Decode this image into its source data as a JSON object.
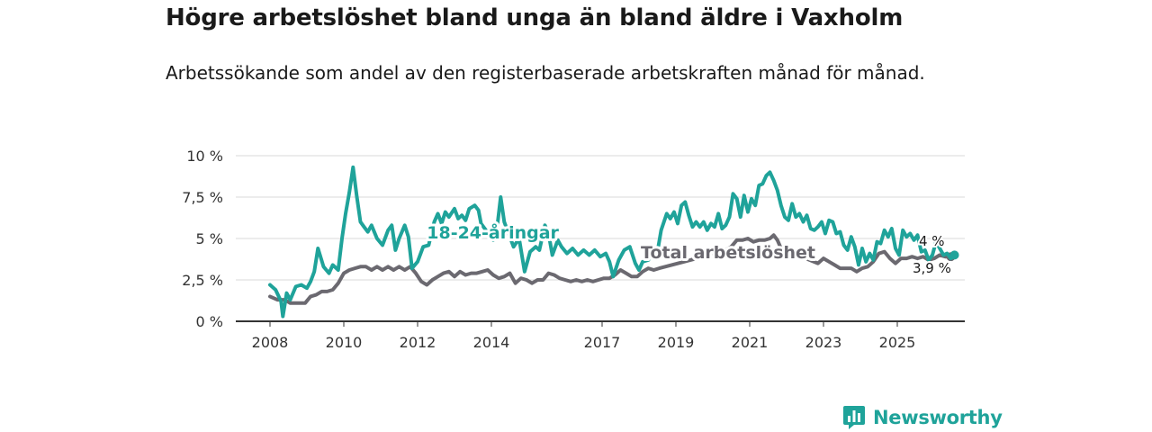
{
  "title": "Högre arbetslöshet bland unga än bland äldre i Vaxholm",
  "subtitle": "Arbetssökande som andel av den registerbaserade arbetskraften månad för månad.",
  "brand": {
    "name": "Newsworthy",
    "icon": "newsworthy-logo-icon",
    "color": "#1fa39a"
  },
  "chart_data": {
    "type": "line",
    "title": "Högre arbetslöshet bland unga än bland äldre i Vaxholm",
    "xlabel": "",
    "ylabel": "",
    "xlim": [
      2007.9,
      2026.0
    ],
    "ylim": [
      0,
      10
    ],
    "y_ticks": [
      0,
      2.5,
      5,
      7.5,
      10
    ],
    "y_tick_labels": [
      "0 %",
      "2,5 %",
      "5 %",
      "7,5 %",
      "10 %"
    ],
    "x_ticks": [
      2008,
      2010,
      2012,
      2014,
      2017,
      2019,
      2021,
      2023,
      2025
    ],
    "x_tick_labels": [
      "2008",
      "2010",
      "2012",
      "2014",
      "2017",
      "2019",
      "2021",
      "2023",
      "2025"
    ],
    "grid": true,
    "series": [
      {
        "name": "18-24-åringar",
        "color": "#1fa39a",
        "label_pos": [
          2012.25,
          5.0
        ],
        "end_label": "4 %",
        "points": [
          [
            2008.0,
            2.2
          ],
          [
            2008.15,
            1.9
          ],
          [
            2008.3,
            1.2
          ],
          [
            2008.35,
            0.3
          ],
          [
            2008.45,
            1.7
          ],
          [
            2008.55,
            1.3
          ],
          [
            2008.7,
            2.1
          ],
          [
            2008.85,
            2.2
          ],
          [
            2009.0,
            2.0
          ],
          [
            2009.1,
            2.4
          ],
          [
            2009.2,
            3.0
          ],
          [
            2009.3,
            4.4
          ],
          [
            2009.45,
            3.3
          ],
          [
            2009.6,
            2.9
          ],
          [
            2009.7,
            3.4
          ],
          [
            2009.85,
            3.1
          ],
          [
            2009.95,
            5.0
          ],
          [
            2010.05,
            6.5
          ],
          [
            2010.15,
            7.8
          ],
          [
            2010.25,
            9.3
          ],
          [
            2010.35,
            7.6
          ],
          [
            2010.45,
            6.0
          ],
          [
            2010.55,
            5.7
          ],
          [
            2010.65,
            5.4
          ],
          [
            2010.75,
            5.8
          ],
          [
            2010.9,
            5.0
          ],
          [
            2011.05,
            4.6
          ],
          [
            2011.2,
            5.5
          ],
          [
            2011.3,
            5.8
          ],
          [
            2011.4,
            4.3
          ],
          [
            2011.5,
            5.0
          ],
          [
            2011.65,
            5.8
          ],
          [
            2011.75,
            5.1
          ],
          [
            2011.85,
            3.2
          ],
          [
            2012.0,
            3.6
          ],
          [
            2012.15,
            4.5
          ],
          [
            2012.3,
            4.6
          ],
          [
            2012.45,
            6.0
          ],
          [
            2012.55,
            6.5
          ],
          [
            2012.65,
            5.9
          ],
          [
            2012.75,
            6.6
          ],
          [
            2012.85,
            6.3
          ],
          [
            2013.0,
            6.8
          ],
          [
            2013.1,
            6.2
          ],
          [
            2013.2,
            6.4
          ],
          [
            2013.3,
            6.1
          ],
          [
            2013.4,
            6.8
          ],
          [
            2013.55,
            7.0
          ],
          [
            2013.65,
            6.7
          ],
          [
            2013.72,
            5.9
          ],
          [
            2014.05,
            4.9
          ],
          [
            2014.15,
            5.6
          ],
          [
            2014.25,
            7.5
          ],
          [
            2014.35,
            6.0
          ],
          [
            2014.45,
            5.4
          ],
          [
            2014.6,
            4.5
          ],
          [
            2014.75,
            5.0
          ],
          [
            2014.9,
            3.0
          ],
          [
            2015.05,
            4.2
          ],
          [
            2015.2,
            4.5
          ],
          [
            2015.3,
            4.3
          ],
          [
            2015.45,
            5.8
          ],
          [
            2015.55,
            5.3
          ],
          [
            2015.65,
            4.0
          ],
          [
            2015.8,
            4.9
          ],
          [
            2015.9,
            4.5
          ],
          [
            2016.05,
            4.1
          ],
          [
            2016.2,
            4.4
          ],
          [
            2016.35,
            4.0
          ],
          [
            2016.5,
            4.3
          ],
          [
            2016.65,
            4.0
          ],
          [
            2016.8,
            4.3
          ],
          [
            2016.95,
            3.9
          ],
          [
            2017.1,
            4.1
          ],
          [
            2017.2,
            3.6
          ],
          [
            2017.3,
            2.7
          ],
          [
            2017.45,
            3.7
          ],
          [
            2017.6,
            4.3
          ],
          [
            2017.75,
            4.5
          ],
          [
            2017.9,
            3.5
          ],
          [
            2018.0,
            3.1
          ],
          [
            2018.1,
            3.6
          ],
          [
            2018.25,
            3.7
          ],
          [
            2018.35,
            4.0
          ],
          [
            2018.5,
            4.2
          ],
          [
            2018.6,
            5.5
          ],
          [
            2018.75,
            6.5
          ],
          [
            2018.85,
            6.2
          ],
          [
            2018.95,
            6.6
          ],
          [
            2019.05,
            5.9
          ],
          [
            2019.15,
            7.0
          ],
          [
            2019.25,
            7.2
          ],
          [
            2019.35,
            6.4
          ],
          [
            2019.45,
            5.7
          ],
          [
            2019.55,
            6.0
          ],
          [
            2019.65,
            5.7
          ],
          [
            2019.75,
            6.0
          ],
          [
            2019.85,
            5.5
          ],
          [
            2019.95,
            5.9
          ],
          [
            2020.05,
            5.7
          ],
          [
            2020.15,
            6.5
          ],
          [
            2020.25,
            5.6
          ],
          [
            2020.35,
            5.8
          ],
          [
            2020.45,
            6.3
          ],
          [
            2020.55,
            7.7
          ],
          [
            2020.65,
            7.4
          ],
          [
            2020.75,
            6.3
          ],
          [
            2020.85,
            7.6
          ],
          [
            2020.95,
            6.6
          ],
          [
            2021.05,
            7.4
          ],
          [
            2021.15,
            7.0
          ],
          [
            2021.25,
            8.2
          ],
          [
            2021.35,
            8.3
          ],
          [
            2021.45,
            8.8
          ],
          [
            2021.55,
            9.0
          ],
          [
            2021.65,
            8.5
          ],
          [
            2021.75,
            7.9
          ],
          [
            2021.85,
            7.0
          ],
          [
            2021.95,
            6.3
          ],
          [
            2022.05,
            6.1
          ],
          [
            2022.15,
            7.1
          ],
          [
            2022.25,
            6.3
          ],
          [
            2022.35,
            6.5
          ],
          [
            2022.45,
            6.0
          ],
          [
            2022.55,
            6.4
          ],
          [
            2022.65,
            5.6
          ],
          [
            2022.75,
            5.5
          ],
          [
            2022.85,
            5.7
          ],
          [
            2022.95,
            6.0
          ],
          [
            2023.05,
            5.3
          ],
          [
            2023.15,
            6.1
          ],
          [
            2023.25,
            6.0
          ],
          [
            2023.35,
            5.3
          ],
          [
            2023.45,
            5.4
          ],
          [
            2023.55,
            4.6
          ],
          [
            2023.65,
            4.3
          ],
          [
            2023.75,
            5.1
          ],
          [
            2023.85,
            4.5
          ],
          [
            2023.95,
            3.4
          ],
          [
            2024.05,
            4.4
          ],
          [
            2024.15,
            3.6
          ],
          [
            2024.25,
            4.1
          ],
          [
            2024.35,
            3.7
          ],
          [
            2024.45,
            4.8
          ],
          [
            2024.55,
            4.7
          ],
          [
            2024.65,
            5.5
          ],
          [
            2024.75,
            5.1
          ],
          [
            2024.85,
            5.6
          ],
          [
            2024.95,
            4.4
          ],
          [
            2025.05,
            4.0
          ],
          [
            2025.15,
            5.5
          ],
          [
            2025.25,
            5.1
          ],
          [
            2025.35,
            5.3
          ],
          [
            2025.45,
            4.9
          ],
          [
            2025.55,
            5.2
          ],
          [
            2025.65,
            4.2
          ],
          [
            2025.75,
            4.3
          ],
          [
            2025.85,
            3.7
          ],
          [
            2025.95,
            4.0
          ],
          [
            2026.05,
            4.8
          ],
          [
            2026.15,
            4.4
          ],
          [
            2026.25,
            4.0
          ],
          [
            2026.35,
            4.1
          ],
          [
            2026.45,
            3.8
          ],
          [
            2026.55,
            4.0
          ]
        ]
      },
      {
        "name": "Total arbetslöshet",
        "color": "#6b6970",
        "label_pos": [
          2018.05,
          3.8
        ],
        "end_label": "3,9 %",
        "points": [
          [
            2008.0,
            1.5
          ],
          [
            2008.2,
            1.3
          ],
          [
            2008.4,
            1.3
          ],
          [
            2008.55,
            1.1
          ],
          [
            2008.75,
            1.1
          ],
          [
            2008.95,
            1.1
          ],
          [
            2009.1,
            1.5
          ],
          [
            2009.25,
            1.6
          ],
          [
            2009.4,
            1.8
          ],
          [
            2009.55,
            1.8
          ],
          [
            2009.7,
            1.9
          ],
          [
            2009.85,
            2.3
          ],
          [
            2010.0,
            2.9
          ],
          [
            2010.15,
            3.1
          ],
          [
            2010.3,
            3.2
          ],
          [
            2010.45,
            3.3
          ],
          [
            2010.6,
            3.3
          ],
          [
            2010.75,
            3.1
          ],
          [
            2010.9,
            3.3
          ],
          [
            2011.05,
            3.1
          ],
          [
            2011.2,
            3.3
          ],
          [
            2011.35,
            3.1
          ],
          [
            2011.5,
            3.3
          ],
          [
            2011.65,
            3.1
          ],
          [
            2011.8,
            3.3
          ],
          [
            2011.95,
            2.9
          ],
          [
            2012.1,
            2.4
          ],
          [
            2012.25,
            2.2
          ],
          [
            2012.4,
            2.5
          ],
          [
            2012.55,
            2.7
          ],
          [
            2012.7,
            2.9
          ],
          [
            2012.85,
            3.0
          ],
          [
            2013.0,
            2.7
          ],
          [
            2013.15,
            3.0
          ],
          [
            2013.3,
            2.8
          ],
          [
            2013.45,
            2.9
          ],
          [
            2013.6,
            2.9
          ],
          [
            2013.75,
            3.0
          ],
          [
            2013.9,
            3.1
          ],
          [
            2014.05,
            2.8
          ],
          [
            2014.2,
            2.6
          ],
          [
            2014.35,
            2.7
          ],
          [
            2014.5,
            2.9
          ],
          [
            2014.65,
            2.3
          ],
          [
            2014.8,
            2.6
          ],
          [
            2014.95,
            2.5
          ],
          [
            2015.1,
            2.3
          ],
          [
            2015.25,
            2.5
          ],
          [
            2015.4,
            2.5
          ],
          [
            2015.55,
            2.9
          ],
          [
            2015.7,
            2.8
          ],
          [
            2015.85,
            2.6
          ],
          [
            2016.0,
            2.5
          ],
          [
            2016.15,
            2.4
          ],
          [
            2016.3,
            2.5
          ],
          [
            2016.45,
            2.4
          ],
          [
            2016.6,
            2.5
          ],
          [
            2016.75,
            2.4
          ],
          [
            2016.9,
            2.5
          ],
          [
            2017.05,
            2.6
          ],
          [
            2017.2,
            2.6
          ],
          [
            2017.35,
            2.8
          ],
          [
            2017.5,
            3.1
          ],
          [
            2017.65,
            2.9
          ],
          [
            2017.8,
            2.7
          ],
          [
            2017.95,
            2.7
          ],
          [
            2018.1,
            3.0
          ],
          [
            2018.25,
            3.2
          ],
          [
            2018.4,
            3.1
          ],
          [
            2018.55,
            3.2
          ],
          [
            2019.9,
            4.0
          ],
          [
            2020.05,
            4.2
          ],
          [
            2020.2,
            4.0
          ],
          [
            2020.35,
            4.3
          ],
          [
            2020.5,
            4.5
          ],
          [
            2020.65,
            4.9
          ],
          [
            2020.8,
            4.9
          ],
          [
            2020.95,
            5.0
          ],
          [
            2021.1,
            4.8
          ],
          [
            2021.25,
            4.9
          ],
          [
            2021.4,
            4.9
          ],
          [
            2021.55,
            5.0
          ],
          [
            2021.65,
            5.2
          ],
          [
            2021.75,
            4.9
          ],
          [
            2021.85,
            4.4
          ],
          [
            2022.85,
            3.5
          ],
          [
            2023.0,
            3.8
          ],
          [
            2023.15,
            3.6
          ],
          [
            2023.3,
            3.4
          ],
          [
            2023.45,
            3.2
          ],
          [
            2023.6,
            3.2
          ],
          [
            2023.75,
            3.2
          ],
          [
            2023.9,
            3.0
          ],
          [
            2024.05,
            3.2
          ],
          [
            2024.2,
            3.3
          ],
          [
            2024.35,
            3.6
          ],
          [
            2024.5,
            4.1
          ],
          [
            2024.65,
            4.2
          ],
          [
            2024.8,
            3.8
          ],
          [
            2024.95,
            3.5
          ],
          [
            2025.1,
            3.8
          ],
          [
            2025.25,
            3.8
          ],
          [
            2025.4,
            3.9
          ],
          [
            2025.55,
            3.8
          ],
          [
            2025.7,
            3.9
          ],
          [
            2025.85,
            3.7
          ],
          [
            2026.0,
            3.8
          ],
          [
            2026.15,
            4.0
          ],
          [
            2026.3,
            3.9
          ],
          [
            2026.45,
            3.9
          ]
        ]
      }
    ]
  }
}
